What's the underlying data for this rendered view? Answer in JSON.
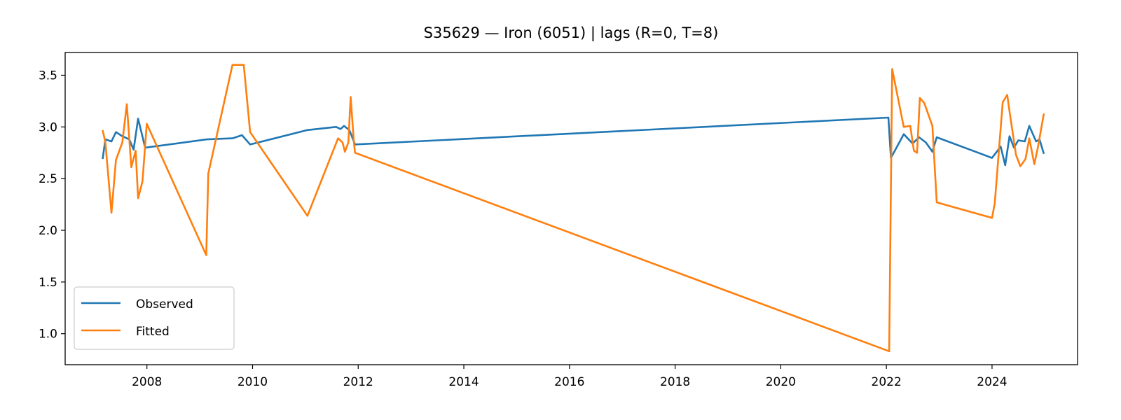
{
  "chart_data": {
    "type": "line",
    "title": "S35629 — Iron (6051) | lags (R=0, T=8)",
    "xlabel": "",
    "ylabel": "",
    "x_axis": "date",
    "xlim": [
      "2006-06-15",
      "2025-08-15"
    ],
    "ylim": [
      0.7,
      3.72
    ],
    "x_ticks": [
      "2008",
      "2010",
      "2012",
      "2014",
      "2016",
      "2018",
      "2020",
      "2022",
      "2024"
    ],
    "y_ticks": [
      "1.0",
      "1.5",
      "2.0",
      "2.5",
      "3.0",
      "3.5"
    ],
    "grid": false,
    "legend": {
      "position": "lower-left"
    },
    "series": [
      {
        "name": "Observed",
        "color": "#1f77b4",
        "points": [
          [
            "2007-03-01",
            2.69
          ],
          [
            "2007-03-20",
            2.88
          ],
          [
            "2007-05-01",
            2.86
          ],
          [
            "2007-06-01",
            2.95
          ],
          [
            "2007-07-15",
            2.91
          ],
          [
            "2007-09-01",
            2.88
          ],
          [
            "2007-10-01",
            2.78
          ],
          [
            "2007-11-01",
            3.08
          ],
          [
            "2007-12-20",
            2.8
          ],
          [
            "2009-02-20",
            2.88
          ],
          [
            "2009-08-15",
            2.89
          ],
          [
            "2009-10-20",
            2.92
          ],
          [
            "2009-12-15",
            2.83
          ],
          [
            "2011-01-15",
            2.97
          ],
          [
            "2011-08-01",
            3.0
          ],
          [
            "2011-09-01",
            2.98
          ],
          [
            "2011-09-25",
            3.01
          ],
          [
            "2011-11-01",
            2.97
          ],
          [
            "2011-12-10",
            2.83
          ],
          [
            "2022-01-15",
            3.09
          ],
          [
            "2022-02-01",
            2.7
          ],
          [
            "2022-05-01",
            2.93
          ],
          [
            "2022-07-01",
            2.84
          ],
          [
            "2022-08-15",
            2.9
          ],
          [
            "2022-10-01",
            2.85
          ],
          [
            "2022-11-15",
            2.76
          ],
          [
            "2022-12-15",
            2.9
          ],
          [
            "2024-01-01",
            2.7
          ],
          [
            "2024-03-01",
            2.81
          ],
          [
            "2024-04-01",
            2.63
          ],
          [
            "2024-05-01",
            2.91
          ],
          [
            "2024-06-01",
            2.8
          ],
          [
            "2024-07-01",
            2.87
          ],
          [
            "2024-08-15",
            2.86
          ],
          [
            "2024-09-15",
            3.01
          ],
          [
            "2024-11-01",
            2.86
          ],
          [
            "2024-11-25",
            2.88
          ],
          [
            "2024-12-25",
            2.74
          ]
        ]
      },
      {
        "name": "Fitted",
        "color": "#ff7f0e",
        "points": [
          [
            "2007-03-01",
            2.97
          ],
          [
            "2007-03-20",
            2.85
          ],
          [
            "2007-05-01",
            2.17
          ],
          [
            "2007-06-01",
            2.68
          ],
          [
            "2007-07-15",
            2.85
          ],
          [
            "2007-08-15",
            3.22
          ],
          [
            "2007-09-15",
            2.61
          ],
          [
            "2007-10-15",
            2.77
          ],
          [
            "2007-11-01",
            2.31
          ],
          [
            "2007-12-01",
            2.47
          ],
          [
            "2007-12-31",
            3.03
          ],
          [
            "2009-02-15",
            1.76
          ],
          [
            "2009-03-01",
            2.55
          ],
          [
            "2009-08-15",
            3.6
          ],
          [
            "2009-11-01",
            3.6
          ],
          [
            "2009-12-15",
            2.95
          ],
          [
            "2011-01-15",
            2.14
          ],
          [
            "2011-08-15",
            2.89
          ],
          [
            "2011-09-15",
            2.85
          ],
          [
            "2011-10-01",
            2.76
          ],
          [
            "2011-10-25",
            2.85
          ],
          [
            "2011-11-10",
            3.29
          ],
          [
            "2011-12-01",
            2.87
          ],
          [
            "2011-12-10",
            2.75
          ],
          [
            "2022-01-20",
            0.83
          ],
          [
            "2022-02-10",
            3.56
          ],
          [
            "2022-05-01",
            3.0
          ],
          [
            "2022-06-15",
            3.01
          ],
          [
            "2022-07-10",
            2.77
          ],
          [
            "2022-08-01",
            2.75
          ],
          [
            "2022-08-20",
            3.28
          ],
          [
            "2022-09-20",
            3.23
          ],
          [
            "2022-11-15",
            3.01
          ],
          [
            "2022-12-15",
            2.27
          ],
          [
            "2024-01-01",
            2.12
          ],
          [
            "2024-01-20",
            2.26
          ],
          [
            "2024-03-15",
            3.24
          ],
          [
            "2024-04-15",
            3.31
          ],
          [
            "2024-05-01",
            3.15
          ],
          [
            "2024-06-15",
            2.73
          ],
          [
            "2024-07-15",
            2.62
          ],
          [
            "2024-08-20",
            2.69
          ],
          [
            "2024-09-15",
            2.89
          ],
          [
            "2024-10-20",
            2.64
          ],
          [
            "2024-11-15",
            2.81
          ],
          [
            "2024-12-25",
            3.13
          ]
        ]
      }
    ]
  }
}
